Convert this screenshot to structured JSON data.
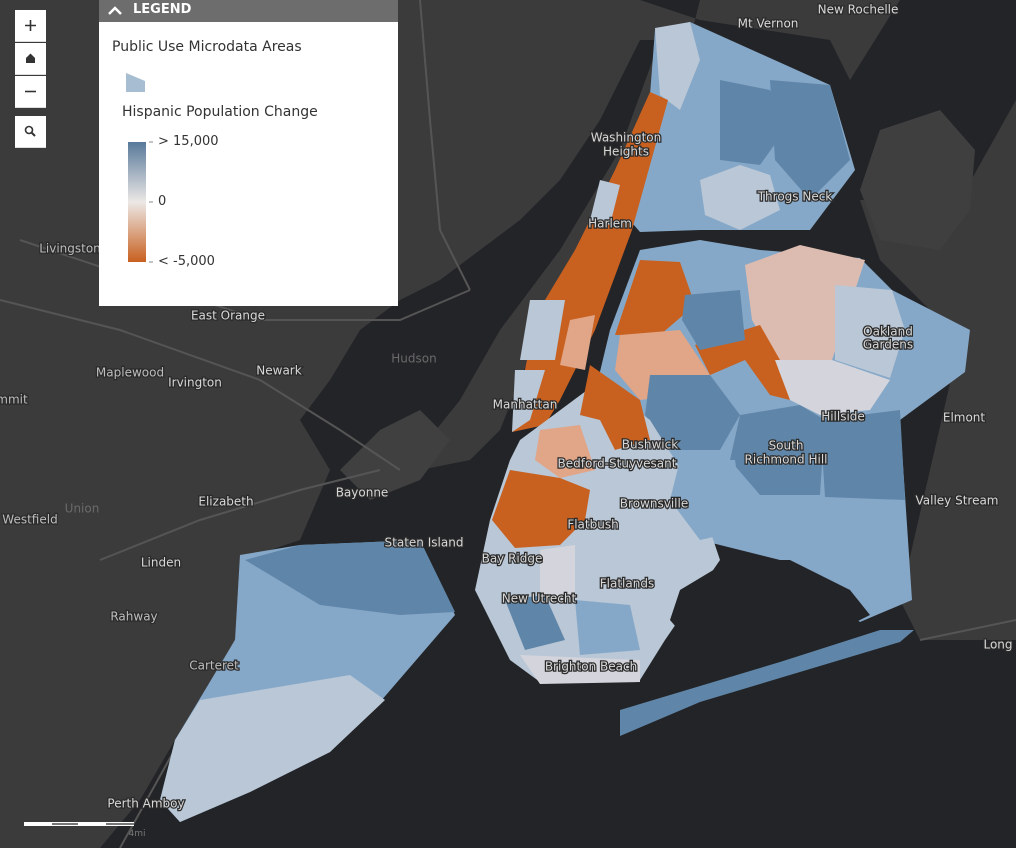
{
  "legend": {
    "header": "LEGEND",
    "layer": "Public Use Microdata Areas",
    "field": "Hispanic Population Change",
    "stops": [
      "> 15,000",
      "0",
      "< -5,000"
    ]
  },
  "map_labels": [
    "Mt Vernon",
    "New Rochelle",
    "Washington",
    "Heights",
    "Throgs Neck",
    "Harlem",
    "Livingston",
    "East Orange",
    "Oakland",
    "Gardens",
    "Hudson",
    "Maplewood",
    "Irvington",
    "Newark",
    "Manhattan",
    "Hillside",
    "Elmont",
    "mmit",
    "Bushwick",
    "South",
    "Richmond Hill",
    "Bedford-Stuyvesant",
    "Bayonne",
    "Elizabeth",
    "Valley Stream",
    "Brownsville",
    "Union",
    "Westfield",
    "Flatbush",
    "Staten Island",
    "Bay Ridge",
    "Linden",
    "Flatlands",
    "New Utrecht",
    "Rahway",
    "Carteret",
    "Brighton Beach",
    "Long",
    "Perth Amboy"
  ],
  "scale": {
    "label": "4mi"
  }
}
